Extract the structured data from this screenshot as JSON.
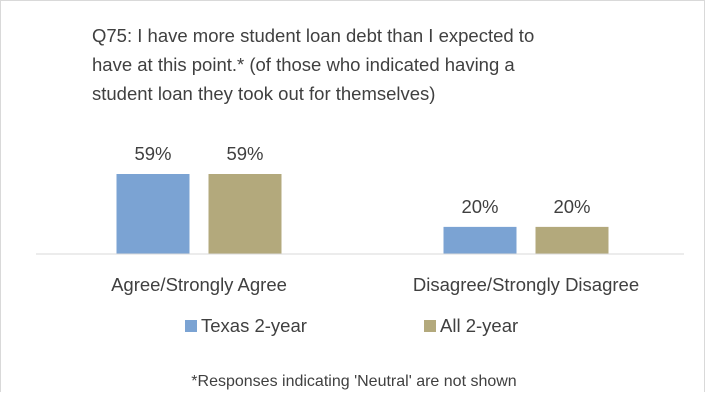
{
  "chart_data": {
    "type": "bar",
    "title": "Q75: I have more student loan debt than I expected to have at this point.* (of those who indicated having a student loan they took out for themselves)",
    "title_lines": [
      "Q75: I have more student loan debt than I expected to",
      "have at this point.* (of those who indicated having a",
      "student loan they took out for themselves)"
    ],
    "categories": [
      "Agree/Strongly Agree",
      "Disagree/Strongly Disagree"
    ],
    "series": [
      {
        "name": "Texas 2-year",
        "values": [
          59,
          20
        ],
        "labels": [
          "59%",
          "20%"
        ],
        "color": "#7ba3d3"
      },
      {
        "name": "All 2-year",
        "values": [
          59,
          20
        ],
        "labels": [
          "59%",
          "20%"
        ],
        "color": "#b3a97c"
      }
    ],
    "ylim": [
      0,
      100
    ],
    "unit": "%",
    "grid": false,
    "legend_position": "bottom",
    "footnote": "*Responses indicating 'Neutral' are not shown"
  }
}
